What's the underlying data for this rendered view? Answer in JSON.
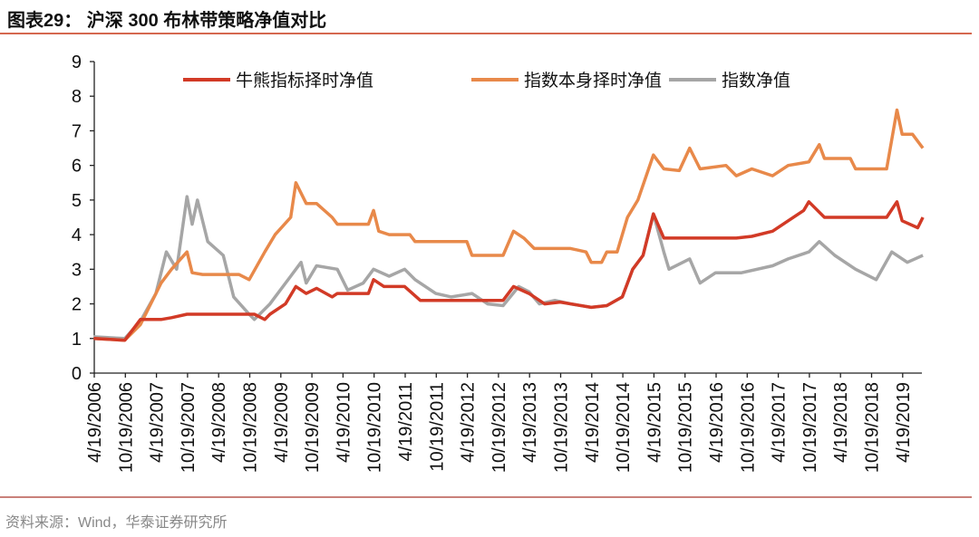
{
  "title": "图表29： 沪深 300 布林带策略净值对比",
  "source": "资料来源：Wind，华泰证券研究所",
  "chart_data": {
    "type": "line",
    "title": "",
    "xlabel": "",
    "ylabel": "",
    "ylim": [
      0,
      9
    ],
    "yticks": [
      "0",
      "1",
      "2",
      "3",
      "4",
      "5",
      "6",
      "7",
      "8",
      "9"
    ],
    "xticks": [
      "4/19/2006",
      "10/19/2006",
      "4/19/2007",
      "10/19/2007",
      "4/19/2008",
      "10/19/2008",
      "4/19/2009",
      "10/19/2009",
      "4/19/2010",
      "10/19/2010",
      "4/19/2011",
      "10/19/2011",
      "4/19/2012",
      "10/19/2012",
      "4/19/2013",
      "10/19/2013",
      "4/19/2014",
      "10/19/2014",
      "4/19/2015",
      "10/19/2015",
      "4/19/2016",
      "10/19/2016",
      "4/19/2017",
      "10/19/2017",
      "4/19/2018",
      "10/19/2018",
      "4/19/2019"
    ],
    "grid": false,
    "legend": "top",
    "series": [
      {
        "name": "牛熊指标择时净值",
        "color": "#d23a26",
        "points": [
          [
            "2006-04",
            1.0
          ],
          [
            "2006-10",
            0.95
          ],
          [
            "2007-01",
            1.55
          ],
          [
            "2007-05",
            1.55
          ],
          [
            "2007-07",
            1.6
          ],
          [
            "2007-10",
            1.7
          ],
          [
            "2008-11",
            1.7
          ],
          [
            "2009-01",
            1.55
          ],
          [
            "2009-02",
            1.7
          ],
          [
            "2009-05",
            2.0
          ],
          [
            "2009-07",
            2.5
          ],
          [
            "2009-09",
            2.3
          ],
          [
            "2009-11",
            2.45
          ],
          [
            "2010-02",
            2.2
          ],
          [
            "2010-03",
            2.3
          ],
          [
            "2010-09",
            2.3
          ],
          [
            "2010-10",
            2.7
          ],
          [
            "2010-12",
            2.5
          ],
          [
            "2011-04",
            2.5
          ],
          [
            "2011-07",
            2.1
          ],
          [
            "2012-11",
            2.1
          ],
          [
            "2013-01",
            2.5
          ],
          [
            "2013-04",
            2.3
          ],
          [
            "2013-07",
            2.0
          ],
          [
            "2013-10",
            2.05
          ],
          [
            "2014-04",
            1.9
          ],
          [
            "2014-07",
            1.95
          ],
          [
            "2014-10",
            2.2
          ],
          [
            "2014-12",
            3.0
          ],
          [
            "2015-02",
            3.4
          ],
          [
            "2015-04",
            4.6
          ],
          [
            "2015-06",
            3.9
          ],
          [
            "2016-08",
            3.9
          ],
          [
            "2016-11",
            3.95
          ],
          [
            "2017-03",
            4.1
          ],
          [
            "2017-06",
            4.4
          ],
          [
            "2017-09",
            4.7
          ],
          [
            "2017-10",
            4.95
          ],
          [
            "2018-01",
            4.5
          ],
          [
            "2019-01",
            4.5
          ],
          [
            "2019-03",
            4.95
          ],
          [
            "2019-04",
            4.4
          ],
          [
            "2019-07",
            4.2
          ],
          [
            "2019-08",
            4.5
          ]
        ]
      },
      {
        "name": "指数本身择时净值",
        "color": "#e8894a",
        "points": [
          [
            "2006-04",
            1.0
          ],
          [
            "2006-10",
            0.95
          ],
          [
            "2007-01",
            1.4
          ],
          [
            "2007-03",
            2.0
          ],
          [
            "2007-05",
            2.6
          ],
          [
            "2007-07",
            3.0
          ],
          [
            "2007-10",
            3.5
          ],
          [
            "2007-11",
            2.9
          ],
          [
            "2008-01",
            2.85
          ],
          [
            "2008-08",
            2.85
          ],
          [
            "2008-10",
            2.7
          ],
          [
            "2009-01",
            3.5
          ],
          [
            "2009-03",
            4.0
          ],
          [
            "2009-06",
            4.5
          ],
          [
            "2009-07",
            5.5
          ],
          [
            "2009-09",
            4.9
          ],
          [
            "2009-11",
            4.9
          ],
          [
            "2010-02",
            4.5
          ],
          [
            "2010-03",
            4.3
          ],
          [
            "2010-09",
            4.3
          ],
          [
            "2010-10",
            4.7
          ],
          [
            "2010-11",
            4.1
          ],
          [
            "2011-01",
            4.0
          ],
          [
            "2011-05",
            4.0
          ],
          [
            "2011-06",
            3.8
          ],
          [
            "2012-04",
            3.8
          ],
          [
            "2012-05",
            3.4
          ],
          [
            "2012-11",
            3.4
          ],
          [
            "2013-01",
            4.1
          ],
          [
            "2013-03",
            3.9
          ],
          [
            "2013-05",
            3.6
          ],
          [
            "2013-12",
            3.6
          ],
          [
            "2014-03",
            3.5
          ],
          [
            "2014-04",
            3.2
          ],
          [
            "2014-06",
            3.2
          ],
          [
            "2014-07",
            3.5
          ],
          [
            "2014-09",
            3.5
          ],
          [
            "2014-11",
            4.5
          ],
          [
            "2015-01",
            5.0
          ],
          [
            "2015-04",
            6.3
          ],
          [
            "2015-06",
            5.9
          ],
          [
            "2015-09",
            5.85
          ],
          [
            "2015-11",
            6.5
          ],
          [
            "2016-01",
            5.9
          ],
          [
            "2016-06",
            6.0
          ],
          [
            "2016-08",
            5.7
          ],
          [
            "2016-11",
            5.9
          ],
          [
            "2017-03",
            5.7
          ],
          [
            "2017-06",
            6.0
          ],
          [
            "2017-10",
            6.1
          ],
          [
            "2017-12",
            6.6
          ],
          [
            "2018-01",
            6.2
          ],
          [
            "2018-06",
            6.2
          ],
          [
            "2018-07",
            5.9
          ],
          [
            "2019-01",
            5.9
          ],
          [
            "2019-03",
            7.6
          ],
          [
            "2019-04",
            6.9
          ],
          [
            "2019-06",
            6.9
          ],
          [
            "2019-08",
            6.5
          ]
        ]
      },
      {
        "name": "指数净值",
        "color": "#a6a6a6",
        "points": [
          [
            "2006-04",
            1.05
          ],
          [
            "2006-10",
            1.0
          ],
          [
            "2007-01",
            1.5
          ],
          [
            "2007-04",
            2.3
          ],
          [
            "2007-06",
            3.5
          ],
          [
            "2007-08",
            3.0
          ],
          [
            "2007-10",
            5.1
          ],
          [
            "2007-11",
            4.3
          ],
          [
            "2007-12",
            5.0
          ],
          [
            "2008-02",
            3.8
          ],
          [
            "2008-05",
            3.4
          ],
          [
            "2008-07",
            2.2
          ],
          [
            "2008-10",
            1.7
          ],
          [
            "2008-11",
            1.55
          ],
          [
            "2009-02",
            2.0
          ],
          [
            "2009-06",
            2.8
          ],
          [
            "2009-08",
            3.2
          ],
          [
            "2009-09",
            2.6
          ],
          [
            "2009-11",
            3.1
          ],
          [
            "2010-03",
            3.0
          ],
          [
            "2010-05",
            2.4
          ],
          [
            "2010-08",
            2.6
          ],
          [
            "2010-10",
            3.0
          ],
          [
            "2011-01",
            2.8
          ],
          [
            "2011-04",
            3.0
          ],
          [
            "2011-06",
            2.7
          ],
          [
            "2011-10",
            2.3
          ],
          [
            "2012-01",
            2.2
          ],
          [
            "2012-05",
            2.3
          ],
          [
            "2012-08",
            2.0
          ],
          [
            "2012-11",
            1.95
          ],
          [
            "2013-02",
            2.5
          ],
          [
            "2013-04",
            2.35
          ],
          [
            "2013-06",
            2.0
          ],
          [
            "2013-09",
            2.1
          ],
          [
            "2013-12",
            2.0
          ],
          [
            "2014-04",
            1.9
          ],
          [
            "2014-07",
            1.95
          ],
          [
            "2014-10",
            2.2
          ],
          [
            "2014-12",
            3.0
          ],
          [
            "2015-02",
            3.4
          ],
          [
            "2015-04",
            4.6
          ],
          [
            "2015-06",
            3.5
          ],
          [
            "2015-07",
            3.0
          ],
          [
            "2015-11",
            3.3
          ],
          [
            "2016-01",
            2.6
          ],
          [
            "2016-04",
            2.9
          ],
          [
            "2016-09",
            2.9
          ],
          [
            "2017-03",
            3.1
          ],
          [
            "2017-06",
            3.3
          ],
          [
            "2017-10",
            3.5
          ],
          [
            "2017-12",
            3.8
          ],
          [
            "2018-03",
            3.4
          ],
          [
            "2018-07",
            3.0
          ],
          [
            "2018-11",
            2.7
          ],
          [
            "2019-02",
            3.5
          ],
          [
            "2019-05",
            3.2
          ],
          [
            "2019-08",
            3.4
          ]
        ]
      }
    ]
  }
}
